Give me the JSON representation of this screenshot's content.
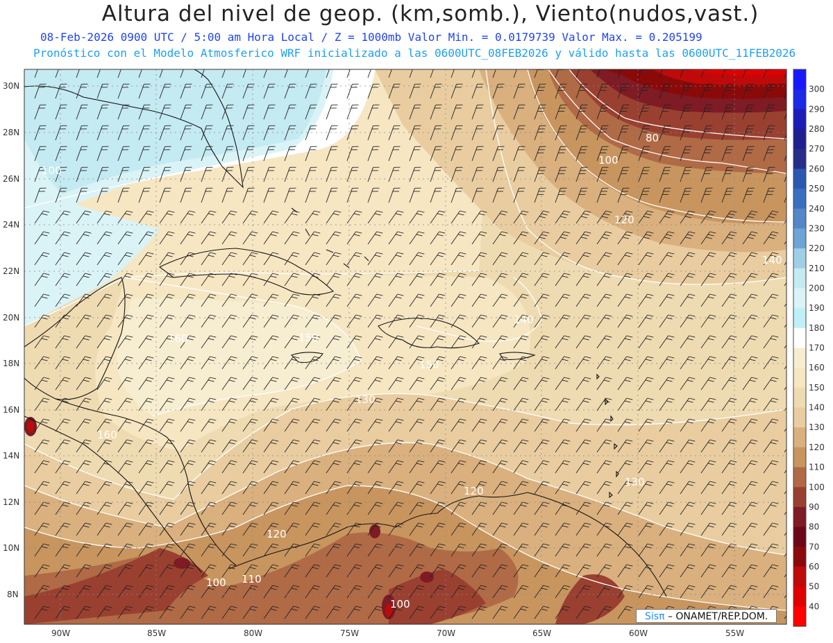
{
  "title": "Altura del nivel de geop. (km,somb.), Viento(nudos,vast.)",
  "subtitle1": "08-Feb-2026  0900 UTC / 5:00 am Hora Local / Z = 1000mb  Valor Min. = 0.0179739  Valor Max. = 0.205199",
  "subtitle2": "Pronóstico con el Modelo Atmosferico WRF inicializado a las 0600UTC_08FEB2026 y válido hasta las  0600UTC_11FEB2026",
  "lat_labels": [
    "30N",
    "28N",
    "26N",
    "24N",
    "22N",
    "20N",
    "18N",
    "16N",
    "14N",
    "12N",
    "10N",
    "8N"
  ],
  "lon_labels": [
    "90W",
    "85W",
    "80W",
    "75W",
    "70W",
    "65W",
    "60W",
    "55W"
  ],
  "colorbar": {
    "labels": [
      "300",
      "290",
      "280",
      "270",
      "260",
      "250",
      "240",
      "230",
      "220",
      "210",
      "200",
      "190",
      "180",
      "170",
      "160",
      "150",
      "140",
      "130",
      "120",
      "110",
      "100",
      "90",
      "80",
      "70",
      "60",
      "50",
      "40"
    ],
    "colors": [
      "#1818ff",
      "#1a2ae6",
      "#1c1cb8",
      "#1f1f90",
      "#262e8a",
      "#2d58b0",
      "#3a6fc0",
      "#5586c8",
      "#6ea4d6",
      "#9fcfe6",
      "#c4eaf2",
      "#daf3f6",
      "#bff0f7",
      "#ffffff",
      "#f7edd0",
      "#f6e6c2",
      "#efdbb1",
      "#e9cda0",
      "#d9b07e",
      "#c8955f",
      "#b06a46",
      "#9a4030",
      "#7e1b24",
      "#6a0818",
      "#8a0a0a",
      "#c00a0a",
      "#e00000",
      "#ff0000"
    ]
  },
  "contour_labels": [
    "80",
    "100",
    "120",
    "140",
    "140",
    "150",
    "160",
    "160",
    "130",
    "130",
    "120",
    "120",
    "110",
    "100",
    "100",
    "100",
    "150"
  ],
  "credit": {
    "sis": "Sisπ",
    "rest": "– ONAMET/REP.DOM."
  },
  "wind_direction": "northeasterly"
}
